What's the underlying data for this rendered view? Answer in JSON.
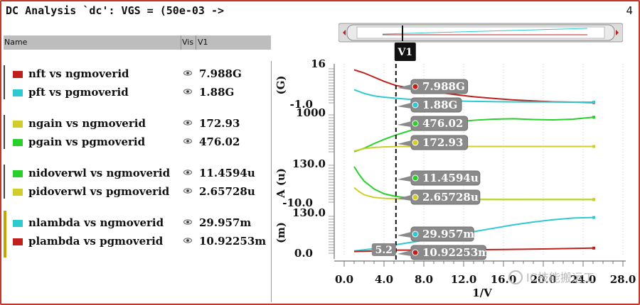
{
  "window": {
    "title": "DC Analysis `dc': VGS = (50e-03 ->",
    "count": "4"
  },
  "table_header": {
    "name": "Name",
    "vis": "Vis",
    "v1": "V1"
  },
  "traces": [
    {
      "name": "nft vs ngmoverid",
      "value": "7.988G",
      "color": "#c0201c"
    },
    {
      "name": "pft vs pgmoverid",
      "value": "1.88G",
      "color": "#2fc9d0"
    },
    {
      "name": "ngain vs ngmoverid",
      "value": "172.93",
      "color": "#d0cf2a"
    },
    {
      "name": "pgain vs pgmoverid",
      "value": "476.02",
      "color": "#2ad02a"
    },
    {
      "name": "nidoverwl vs ngmoverid",
      "value": "11.4594u",
      "color": "#2ad02a"
    },
    {
      "name": "pidoverwl vs pgmoverid",
      "value": "2.65728u",
      "color": "#d0cf2a"
    },
    {
      "name": "nlambda vs ngmoverid",
      "value": "29.957m",
      "color": "#2fc9d0"
    },
    {
      "name": "plambda vs pgmoverid",
      "value": "10.92253m",
      "color": "#c0201c"
    }
  ],
  "cursor": {
    "label": "V1",
    "x_value_label": "5.2",
    "x": 5.2
  },
  "x_axis": {
    "label": "1/V",
    "ticks": [
      "0.0",
      "4.0",
      "8.0",
      "12.0",
      "16.0",
      "20.0",
      "24.0",
      "28.0"
    ]
  },
  "watermark": "IC技能搬运工",
  "panels": [
    {
      "id": "freq",
      "unit_label": "(G)",
      "y_top_label": "16",
      "y_bottom_label": "-1.0",
      "ylim": [
        -1.0,
        16.0
      ],
      "markers": [
        {
          "text": "7.988G",
          "dot_color": "#c0201c"
        },
        {
          "text": "1.88G",
          "dot_color": "#2fc9d0"
        }
      ]
    },
    {
      "id": "gain",
      "unit_label": "",
      "y_top_label": "1000",
      "y_bottom_label": "",
      "ylim": [
        0,
        1000
      ],
      "markers": [
        {
          "text": "476.02",
          "dot_color": "#2ad02a"
        },
        {
          "text": "172.93",
          "dot_color": "#d0cf2a"
        }
      ]
    },
    {
      "id": "idw",
      "unit_label": "A (u)",
      "y_top_label": "130.0",
      "y_bottom_label": "-10.0",
      "ylim": [
        -10.0,
        130.0
      ],
      "markers": [
        {
          "text": "11.4594u",
          "dot_color": "#2ad02a"
        },
        {
          "text": "2.65728u",
          "dot_color": "#d0cf2a"
        }
      ]
    },
    {
      "id": "lambda",
      "unit_label": "(m)",
      "y_top_label": "130.0",
      "y_bottom_label": "0.0",
      "ylim": [
        0.0,
        130.0
      ],
      "markers": [
        {
          "text": "29.957m",
          "dot_color": "#2fc9d0"
        },
        {
          "text": "10.92253m",
          "dot_color": "#c0201c"
        }
      ]
    }
  ],
  "chart_data": {
    "type": "line",
    "x_label": "1/V",
    "xlim": [
      0.0,
      28.0
    ],
    "series": [
      {
        "name": "nft vs ngmoverid",
        "panel": 0,
        "color": "#c0201c",
        "x": [
          1,
          2,
          3,
          4,
          5.2,
          7,
          9,
          11,
          13,
          15,
          17,
          19,
          21,
          23,
          25
        ],
        "y": [
          15.5,
          14.0,
          12.0,
          10.0,
          7.988,
          6.5,
          5.0,
          3.7,
          2.6,
          1.8,
          1.1,
          0.6,
          0.2,
          0.0,
          -0.2
        ]
      },
      {
        "name": "pft vs pgmoverid",
        "panel": 0,
        "color": "#2fc9d0",
        "x": [
          1,
          2,
          3,
          4,
          5.2,
          7,
          10,
          13,
          16,
          19,
          22,
          25
        ],
        "y": [
          6.0,
          4.2,
          3.0,
          2.4,
          1.88,
          1.2,
          0.7,
          0.4,
          0.2,
          0.1,
          0.05,
          0.0
        ]
      },
      {
        "name": "pgain vs pgmoverid",
        "panel": 1,
        "color": "#2ad02a",
        "x": [
          1,
          2,
          3,
          4,
          5.2,
          7,
          9,
          11,
          13,
          15,
          17,
          19,
          21,
          23,
          25
        ],
        "y": [
          40,
          130,
          250,
          360,
          476.02,
          620,
          730,
          810,
          860,
          890,
          900,
          880,
          870,
          890,
          940
        ]
      },
      {
        "name": "ngain vs ngmoverid",
        "panel": 1,
        "color": "#d0cf2a",
        "x": [
          1,
          2,
          3,
          4,
          5.2,
          7,
          10,
          14,
          18,
          22,
          25
        ],
        "y": [
          60,
          120,
          150,
          165,
          172.93,
          176,
          176,
          175,
          175,
          176,
          176
        ]
      },
      {
        "name": "nidoverwl vs ngmoverid",
        "panel": 2,
        "color": "#2ad02a",
        "x": [
          1,
          1.5,
          2,
          3,
          4,
          5.2,
          7,
          10,
          14,
          18,
          22,
          25
        ],
        "y": [
          125,
          95,
          70,
          40,
          22,
          11.4594,
          4,
          1,
          0.3,
          0.1,
          0.0,
          0.0
        ]
      },
      {
        "name": "pidoverwl vs pgmoverid",
        "panel": 2,
        "color": "#d0cf2a",
        "x": [
          1,
          1.5,
          2,
          3,
          4,
          5.2,
          7,
          10,
          14,
          18,
          22,
          25
        ],
        "y": [
          45,
          30,
          18,
          8,
          4.5,
          2.65728,
          1.0,
          0.3,
          0.1,
          0.0,
          0.0,
          0.0
        ]
      },
      {
        "name": "nlambda vs ngmoverid",
        "panel": 3,
        "color": "#2fc9d0",
        "x": [
          1,
          3,
          5.2,
          7,
          9,
          11,
          13,
          15,
          17,
          19,
          21,
          23,
          25
        ],
        "y": [
          8,
          16,
          29.957,
          40,
          52,
          64,
          76,
          88,
          100,
          110,
          118,
          124,
          126
        ]
      },
      {
        "name": "plambda vs pgmoverid",
        "panel": 3,
        "color": "#c0201c",
        "x": [
          1,
          3,
          5.2,
          8,
          12,
          16,
          20,
          23,
          25
        ],
        "y": [
          6,
          8,
          10.92253,
          11,
          12,
          13,
          15,
          17,
          18
        ]
      }
    ]
  }
}
